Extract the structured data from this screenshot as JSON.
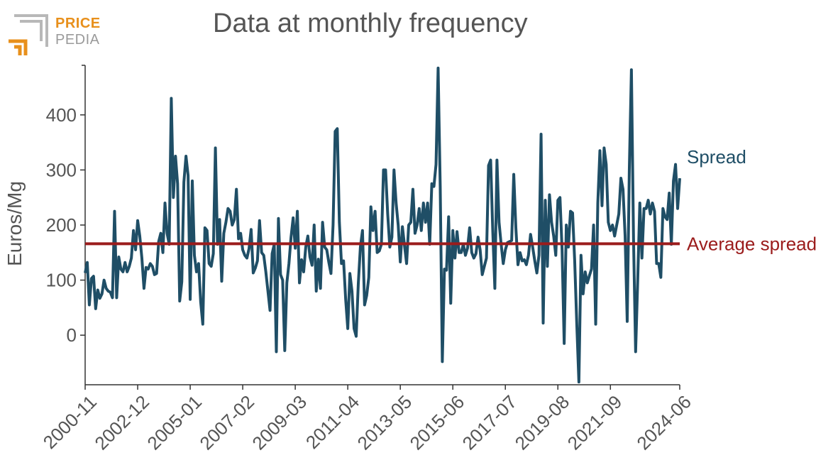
{
  "logo": {
    "line1": "PRICE",
    "line2": "PEDIA"
  },
  "chart_data": {
    "type": "line",
    "title": "Data at monthly frequency",
    "xlabel": "",
    "ylabel": "Euros/Mg",
    "ylim": [
      -90,
      490
    ],
    "yticks": [
      0,
      100,
      200,
      300,
      400
    ],
    "x_start": "2000-11",
    "x_end": "2024-06",
    "xticks": [
      "2000-11",
      "2002-12",
      "2005-01",
      "2007-02",
      "2009-03",
      "2011-04",
      "2013-05",
      "2015-06",
      "2017-07",
      "2019-08",
      "2021-09",
      "2024-06"
    ],
    "grid": false,
    "legend": "inline labels at right end of lines",
    "colors": {
      "spread": "#1f4e66",
      "average": "#9b1c1c",
      "text": "#555555",
      "axis": "#333333"
    },
    "series": [
      {
        "name": "Spread",
        "values": [
          113,
          132,
          55,
          103,
          107,
          48,
          82,
          67,
          75,
          100,
          85,
          80,
          78,
          68,
          225,
          68,
          142,
          120,
          115,
          132,
          115,
          125,
          140,
          190,
          155,
          208,
          180,
          140,
          85,
          123,
          120,
          130,
          125,
          110,
          112,
          170,
          185,
          150,
          240,
          185,
          165,
          430,
          250,
          325,
          275,
          62,
          97,
          278,
          325,
          290,
          65,
          280,
          145,
          115,
          130,
          60,
          20,
          195,
          190,
          130,
          125,
          148,
          340,
          165,
          210,
          98,
          185,
          205,
          230,
          225,
          200,
          210,
          265,
          175,
          185,
          155,
          145,
          140,
          157,
          192,
          113,
          122,
          135,
          208,
          150,
          145,
          115,
          80,
          45,
          148,
          165,
          -30,
          212,
          110,
          100,
          -28,
          95,
          130,
          178,
          213,
          158,
          225,
          95,
          137,
          115,
          160,
          180,
          142,
          127,
          200,
          80,
          138,
          85,
          205,
          160,
          155,
          132,
          112,
          200,
          370,
          375,
          205,
          130,
          135,
          65,
          12,
          112,
          80,
          12,
          -2,
          93,
          160,
          190,
          55,
          72,
          105,
          233,
          190,
          225,
          150,
          153,
          165,
          300,
          300,
          220,
          160,
          178,
          300,
          240,
          200,
          133,
          197,
          163,
          130,
          200,
          205,
          265,
          185,
          200,
          230,
          190,
          240,
          205,
          240,
          165,
          275,
          270,
          310,
          485,
          270,
          -48,
          120,
          118,
          215,
          58,
          190,
          140,
          188,
          150,
          150,
          165,
          145,
          158,
          195,
          150,
          140,
          148,
          178,
          155,
          110,
          125,
          140,
          308,
          318,
          190,
          85,
          318,
          205,
          165,
          130,
          155,
          168,
          170,
          172,
          292,
          195,
          128,
          150,
          135,
          137,
          128,
          145,
          183,
          160,
          135,
          113,
          145,
          365,
          22,
          245,
          125,
          255,
          205,
          180,
          145,
          245,
          250,
          155,
          -15,
          200,
          160,
          225,
          222,
          135,
          20,
          -85,
          145,
          75,
          115,
          95,
          108,
          120,
          200,
          20,
          240,
          335,
          235,
          340,
          310,
          205,
          190,
          200,
          180,
          200,
          220,
          285,
          265,
          180,
          25,
          300,
          482,
          175,
          -30,
          100,
          240,
          140,
          230,
          230,
          245,
          220,
          240,
          225,
          130,
          130,
          105,
          230,
          215,
          210,
          258,
          165,
          280,
          310,
          230,
          285
        ]
      },
      {
        "name": "Average spread",
        "value": 166
      }
    ]
  }
}
